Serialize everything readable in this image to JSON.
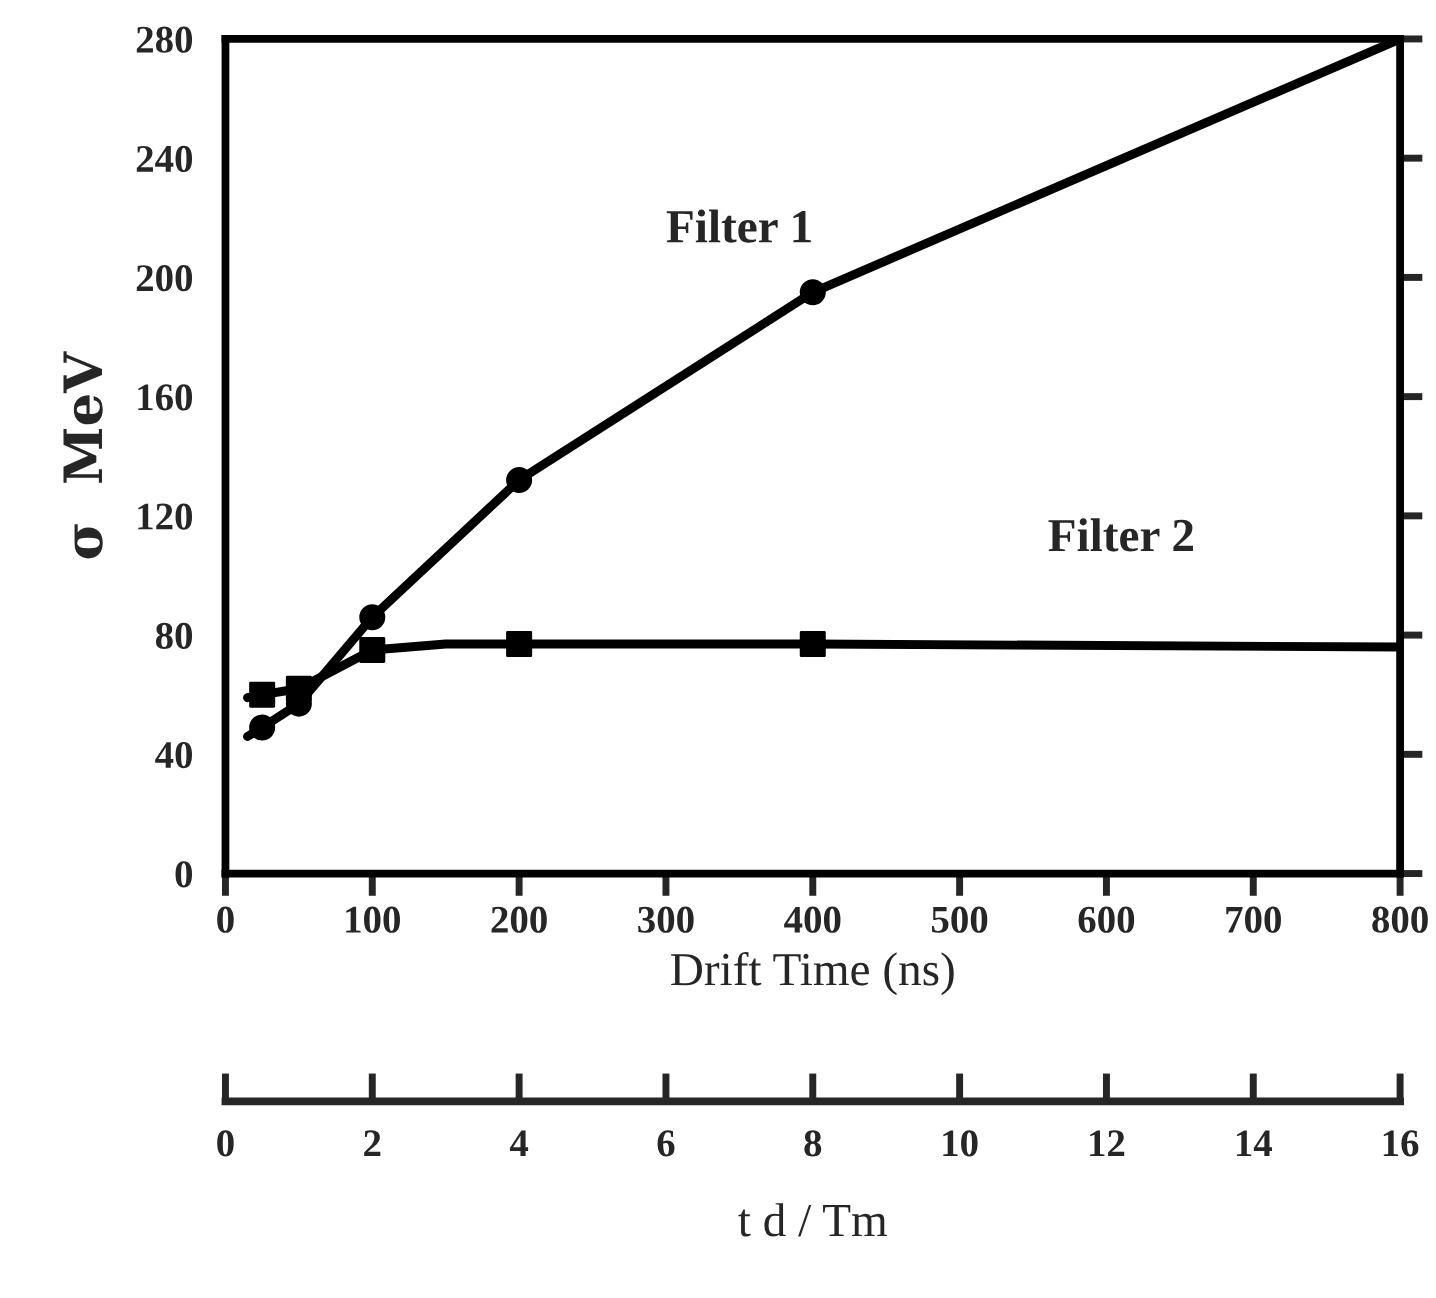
{
  "chart_data": {
    "type": "line",
    "xlabel": "Drift Time (ns)",
    "ylabel": "σ  MeV",
    "x2label": "t d / Tm",
    "xlim": [
      0,
      800
    ],
    "xticks": [
      0,
      100,
      200,
      300,
      400,
      500,
      600,
      700,
      800
    ],
    "ylim": [
      0,
      280
    ],
    "yticks": [
      0,
      40,
      80,
      120,
      160,
      200,
      240,
      280
    ],
    "x2lim": [
      0,
      16
    ],
    "x2ticks": [
      0,
      2,
      4,
      6,
      8,
      10,
      12,
      14,
      16
    ],
    "grid": false,
    "legend": false,
    "series": [
      {
        "marker": "none",
        "color": "#000000",
        "x": [
          15,
          25,
          50,
          100,
          200,
          400,
          800
        ],
        "values": [
          46,
          49,
          57,
          86,
          132,
          195,
          280
        ]
      },
      {
        "marker": "none",
        "color": "#000000",
        "x": [
          15,
          25,
          50,
          100,
          150,
          200,
          400,
          800
        ],
        "values": [
          59,
          60,
          62,
          75,
          77,
          77,
          77,
          76
        ]
      },
      {
        "type": "scatter",
        "marker": "circle",
        "color": "#000000",
        "x": [
          25,
          50,
          100,
          200,
          400
        ],
        "values": [
          49,
          57,
          86,
          132,
          195
        ]
      },
      {
        "type": "scatter",
        "marker": "square",
        "color": "#000000",
        "x": [
          25,
          50,
          100,
          200,
          400
        ],
        "values": [
          60,
          62,
          75,
          77,
          77
        ]
      }
    ],
    "annotations": [
      "Filter 1",
      "Filter 2"
    ]
  }
}
